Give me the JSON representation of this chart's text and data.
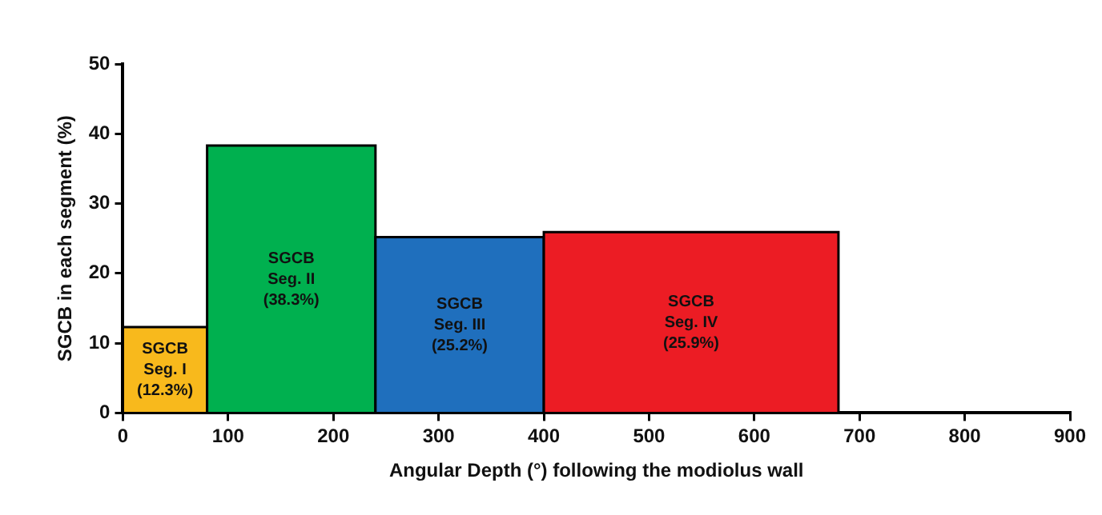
{
  "chart_data": {
    "type": "histogram",
    "xlabel": "Angular Depth (°) following the modiolus wall",
    "ylabel": "SGCB in each segment (%)",
    "bins": [
      0,
      80,
      240,
      400,
      680
    ],
    "values": [
      12.3,
      38.3,
      25.2,
      25.9
    ],
    "colors": [
      "#f8b91c",
      "#00b04f",
      "#1f6fbd",
      "#ec1c24"
    ],
    "value_labels": [
      "SGCB\nSeg. I\n(12.3%)",
      "SGCB\nSeg. II\n(38.3%)",
      "SGCB\nSeg. III\n(25.2%)",
      "SGCB\nSeg. IV\n(25.9%)"
    ],
    "xlim": [
      0,
      900
    ],
    "xticks": [
      0,
      100,
      200,
      300,
      400,
      500,
      600,
      700,
      800,
      900
    ],
    "ylim": [
      0,
      50
    ],
    "yticks": [
      0,
      10,
      20,
      30,
      40,
      50
    ],
    "grid": false,
    "legend": false
  }
}
